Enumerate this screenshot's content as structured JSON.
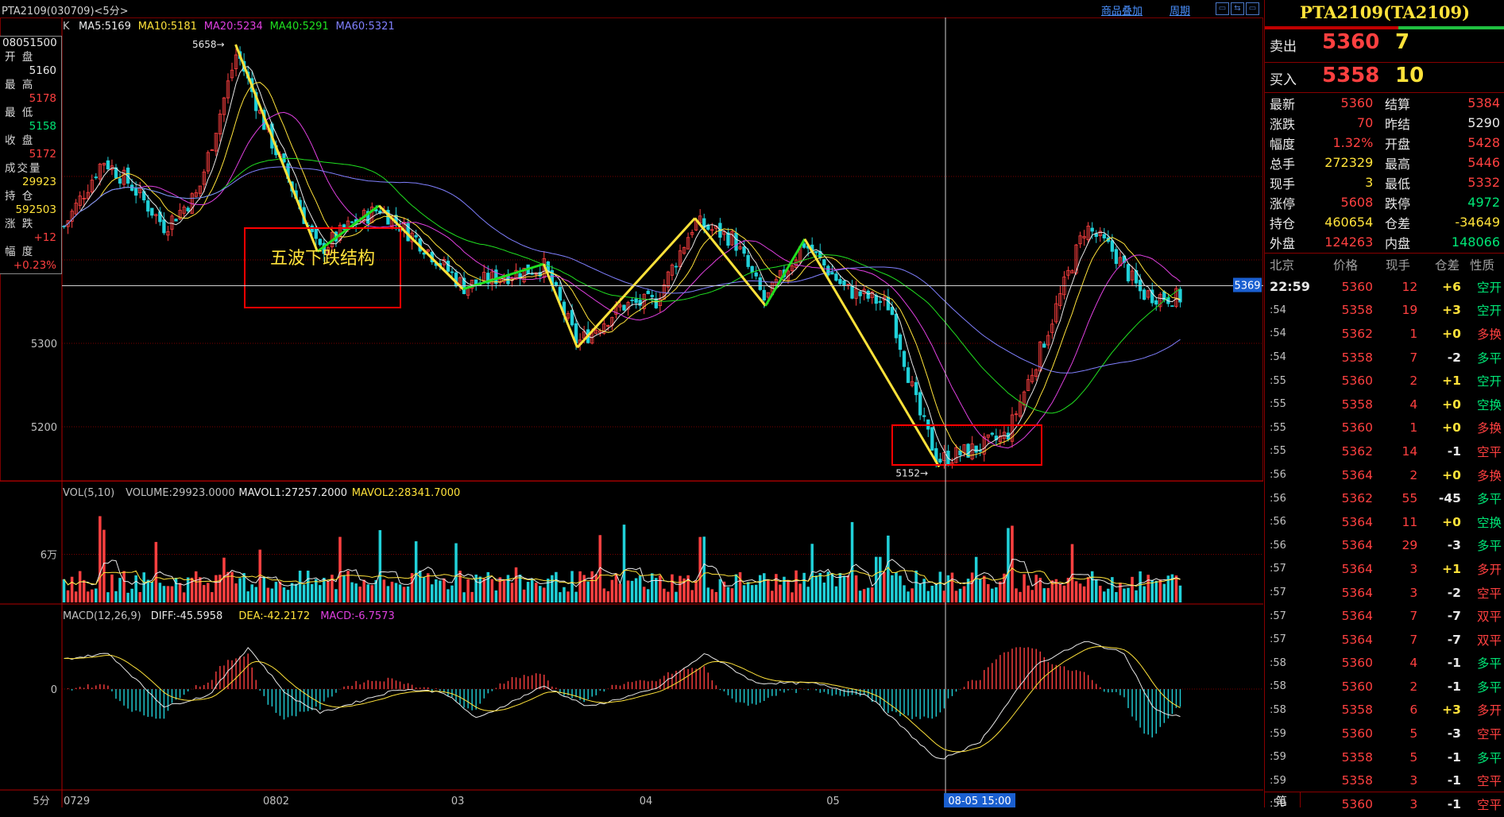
{
  "window": {
    "title": "PTA2109(030709)<5分>",
    "links": [
      "商品叠加",
      "周期"
    ],
    "buttons": [
      "▭",
      "⇆",
      "▭"
    ]
  },
  "left_info": {
    "time": "08051500",
    "rows": [
      {
        "label": "开  盘",
        "value": "5160",
        "color": "#e8e8e8"
      },
      {
        "label": "最  高",
        "value": "5178",
        "color": "#ff4040"
      },
      {
        "label": "最  低",
        "value": "5158",
        "color": "#00e676"
      },
      {
        "label": "收  盘",
        "value": "5172",
        "color": "#ff4040"
      },
      {
        "label": "成交量",
        "value": "29923",
        "color": "#ffe23a"
      },
      {
        "label": "持  仓",
        "value": "592503",
        "color": "#ffe23a"
      },
      {
        "label": "涨  跌",
        "value": "+12",
        "color": "#ff4040"
      },
      {
        "label": "幅  度",
        "value": "+0.23%",
        "color": "#ff4040"
      }
    ]
  },
  "chart_data": {
    "type": "candlestick",
    "period": "5分",
    "legend": {
      "prefix": "K",
      "items": [
        {
          "text": "MA5:5169",
          "color": "#e8e8e8"
        },
        {
          "text": "MA10:5181",
          "color": "#ffe23a"
        },
        {
          "text": "MA20:5234",
          "color": "#e040e0"
        },
        {
          "text": "MA40:5291",
          "color": "#20e020"
        },
        {
          "text": "MA60:5321",
          "color": "#8080ff"
        }
      ]
    },
    "y_ticks": [
      5200,
      5300
    ],
    "ylim": [
      5140,
      5670
    ],
    "x_ticks": [
      {
        "label": "0729",
        "pos": 0.0
      },
      {
        "label": "0802",
        "pos": 0.178
      },
      {
        "label": "03",
        "pos": 0.346
      },
      {
        "label": "04",
        "pos": 0.514
      },
      {
        "label": "05",
        "pos": 0.681
      }
    ],
    "x_cursor_label": "08-05 15:00",
    "y_cursor_label": "5369",
    "cursor_value": 5369,
    "high_annot": {
      "label": "5658",
      "value": 5658,
      "pos": 0.155
    },
    "low_annot": {
      "label": "5152",
      "value": 5152,
      "pos": 0.783
    },
    "annotation_text": "五波下跌结构",
    "wave_points": [
      {
        "pos": 0.155,
        "value": 5658
      },
      {
        "pos": 0.228,
        "value": 5410
      },
      {
        "pos": 0.283,
        "value": 5465
      },
      {
        "pos": 0.358,
        "value": 5365
      },
      {
        "pos": 0.43,
        "value": 5395
      },
      {
        "pos": 0.46,
        "value": 5295
      },
      {
        "pos": 0.565,
        "value": 5450
      },
      {
        "pos": 0.628,
        "value": 5345
      },
      {
        "pos": 0.663,
        "value": 5425
      },
      {
        "pos": 0.783,
        "value": 5152
      }
    ],
    "close_anchors": [
      {
        "pos": 0.0,
        "value": 5440
      },
      {
        "pos": 0.035,
        "value": 5520
      },
      {
        "pos": 0.06,
        "value": 5490
      },
      {
        "pos": 0.09,
        "value": 5440
      },
      {
        "pos": 0.12,
        "value": 5480
      },
      {
        "pos": 0.155,
        "value": 5650
      },
      {
        "pos": 0.18,
        "value": 5560
      },
      {
        "pos": 0.2,
        "value": 5500
      },
      {
        "pos": 0.228,
        "value": 5410
      },
      {
        "pos": 0.255,
        "value": 5440
      },
      {
        "pos": 0.283,
        "value": 5462
      },
      {
        "pos": 0.32,
        "value": 5420
      },
      {
        "pos": 0.358,
        "value": 5368
      },
      {
        "pos": 0.39,
        "value": 5380
      },
      {
        "pos": 0.43,
        "value": 5392
      },
      {
        "pos": 0.46,
        "value": 5300
      },
      {
        "pos": 0.5,
        "value": 5345
      },
      {
        "pos": 0.53,
        "value": 5350
      },
      {
        "pos": 0.565,
        "value": 5445
      },
      {
        "pos": 0.6,
        "value": 5425
      },
      {
        "pos": 0.628,
        "value": 5350
      },
      {
        "pos": 0.663,
        "value": 5420
      },
      {
        "pos": 0.7,
        "value": 5365
      },
      {
        "pos": 0.74,
        "value": 5345
      },
      {
        "pos": 0.765,
        "value": 5220
      },
      {
        "pos": 0.783,
        "value": 5160
      },
      {
        "pos": 0.82,
        "value": 5175
      },
      {
        "pos": 0.845,
        "value": 5190
      },
      {
        "pos": 0.88,
        "value": 5310
      },
      {
        "pos": 0.915,
        "value": 5440
      },
      {
        "pos": 0.94,
        "value": 5410
      },
      {
        "pos": 0.965,
        "value": 5360
      },
      {
        "pos": 0.99,
        "value": 5355
      }
    ],
    "volume": {
      "legend": [
        {
          "text": "VOL(5,10)",
          "color": "#c0c0c0"
        },
        {
          "text": "VOLUME:29923.0000",
          "color": "#c0c0c0"
        },
        {
          "text": "MAVOL1:27257.2000",
          "color": "#e8e8e8"
        },
        {
          "text": "MAVOL2:28341.7000",
          "color": "#ffe23a"
        }
      ],
      "y_tick_label": "6万",
      "y_tick_value": 60000,
      "ymax": 130000
    },
    "macd": {
      "legend": [
        {
          "text": "MACD(12,26,9)",
          "color": "#c0c0c0"
        },
        {
          "text": "DIFF:-45.5958",
          "color": "#e8e8e8"
        },
        {
          "text": "DEA:-42.2172",
          "color": "#ffe23a"
        },
        {
          "text": "MACD:-6.7573",
          "color": "#e040e0"
        }
      ],
      "zero_label": "0",
      "diff_anchors": [
        {
          "pos": 0.0,
          "value": 50
        },
        {
          "pos": 0.04,
          "value": 60
        },
        {
          "pos": 0.09,
          "value": -30
        },
        {
          "pos": 0.13,
          "value": -10
        },
        {
          "pos": 0.165,
          "value": 70
        },
        {
          "pos": 0.2,
          "value": -10
        },
        {
          "pos": 0.23,
          "value": -40
        },
        {
          "pos": 0.3,
          "value": 0
        },
        {
          "pos": 0.34,
          "value": -5
        },
        {
          "pos": 0.37,
          "value": -50
        },
        {
          "pos": 0.43,
          "value": 5
        },
        {
          "pos": 0.47,
          "value": -30
        },
        {
          "pos": 0.53,
          "value": 0
        },
        {
          "pos": 0.575,
          "value": 60
        },
        {
          "pos": 0.62,
          "value": 10
        },
        {
          "pos": 0.67,
          "value": 10
        },
        {
          "pos": 0.72,
          "value": -10
        },
        {
          "pos": 0.783,
          "value": -120
        },
        {
          "pos": 0.82,
          "value": -90
        },
        {
          "pos": 0.87,
          "value": 40
        },
        {
          "pos": 0.915,
          "value": 80
        },
        {
          "pos": 0.95,
          "value": 60
        },
        {
          "pos": 0.975,
          "value": -30
        },
        {
          "pos": 0.99,
          "value": -45
        }
      ]
    }
  },
  "right_panel": {
    "title": "PTA2109(TA2109)",
    "sell": {
      "label": "卖出",
      "price": "5360",
      "qty": "7"
    },
    "buy": {
      "label": "买入",
      "price": "5358",
      "qty": "10"
    },
    "quote_rows": [
      {
        "l1": "最新",
        "v1": "5360",
        "c1": "#ff4040",
        "l2": "结算",
        "v2": "5384",
        "c2": "#ff4040"
      },
      {
        "l1": "涨跌",
        "v1": "70",
        "c1": "#ff4040",
        "l2": "昨结",
        "v2": "5290",
        "c2": "#e8e8e8"
      },
      {
        "l1": "幅度",
        "v1": "1.32%",
        "c1": "#ff4040",
        "l2": "开盘",
        "v2": "5428",
        "c2": "#ff4040"
      },
      {
        "l1": "总手",
        "v1": "272329",
        "c1": "#ffe23a",
        "l2": "最高",
        "v2": "5446",
        "c2": "#ff4040"
      },
      {
        "l1": "现手",
        "v1": "3",
        "c1": "#ffe23a",
        "l2": "最低",
        "v2": "5332",
        "c2": "#ff4040"
      },
      {
        "l1": "涨停",
        "v1": "5608",
        "c1": "#ff4040",
        "l2": "跌停",
        "v2": "4972",
        "c2": "#00e676"
      },
      {
        "l1": "持仓",
        "v1": "460654",
        "c1": "#ffe23a",
        "l2": "仓差",
        "v2": "-34649",
        "c2": "#ffe23a"
      },
      {
        "l1": "外盘",
        "v1": "124263",
        "c1": "#ff4040",
        "l2": "内盘",
        "v2": "148066",
        "c2": "#00e676"
      }
    ],
    "tick_header": [
      "北京",
      "价格",
      "现手",
      "仓差",
      "性质"
    ],
    "ticks": [
      {
        "time": "22:59",
        "price": "5360",
        "qty": "12",
        "diff": "+6",
        "nature": "空开",
        "nc": "#00e676"
      },
      {
        "time": ":54",
        "price": "5358",
        "qty": "19",
        "diff": "+3",
        "nature": "空开",
        "nc": "#00e676"
      },
      {
        "time": ":54",
        "price": "5362",
        "qty": "1",
        "diff": "+0",
        "nature": "多换",
        "nc": "#ff4040"
      },
      {
        "time": ":54",
        "price": "5358",
        "qty": "7",
        "diff": "-2",
        "nature": "多平",
        "nc": "#00e676"
      },
      {
        "time": ":55",
        "price": "5360",
        "qty": "2",
        "diff": "+1",
        "nature": "空开",
        "nc": "#00e676"
      },
      {
        "time": ":55",
        "price": "5358",
        "qty": "4",
        "diff": "+0",
        "nature": "空换",
        "nc": "#00e676"
      },
      {
        "time": ":55",
        "price": "5360",
        "qty": "1",
        "diff": "+0",
        "nature": "多换",
        "nc": "#ff4040"
      },
      {
        "time": ":55",
        "price": "5362",
        "qty": "14",
        "diff": "-1",
        "nature": "空平",
        "nc": "#ff4040"
      },
      {
        "time": ":56",
        "price": "5364",
        "qty": "2",
        "diff": "+0",
        "nature": "多换",
        "nc": "#ff4040"
      },
      {
        "time": ":56",
        "price": "5362",
        "qty": "55",
        "diff": "-45",
        "nature": "多平",
        "nc": "#00e676"
      },
      {
        "time": ":56",
        "price": "5364",
        "qty": "11",
        "diff": "+0",
        "nature": "空换",
        "nc": "#00e676"
      },
      {
        "time": ":56",
        "price": "5364",
        "qty": "29",
        "diff": "-3",
        "nature": "多平",
        "nc": "#00e676"
      },
      {
        "time": ":57",
        "price": "5364",
        "qty": "3",
        "diff": "+1",
        "nature": "多开",
        "nc": "#ff4040"
      },
      {
        "time": ":57",
        "price": "5364",
        "qty": "3",
        "diff": "-2",
        "nature": "空平",
        "nc": "#ff4040"
      },
      {
        "time": ":57",
        "price": "5364",
        "qty": "7",
        "diff": "-7",
        "nature": "双平",
        "nc": "#ff4040"
      },
      {
        "time": ":57",
        "price": "5364",
        "qty": "7",
        "diff": "-7",
        "nature": "双平",
        "nc": "#ff4040"
      },
      {
        "time": ":58",
        "price": "5360",
        "qty": "4",
        "diff": "-1",
        "nature": "多平",
        "nc": "#00e676"
      },
      {
        "time": ":58",
        "price": "5360",
        "qty": "2",
        "diff": "-1",
        "nature": "多平",
        "nc": "#00e676"
      },
      {
        "time": ":58",
        "price": "5358",
        "qty": "6",
        "diff": "+3",
        "nature": "多开",
        "nc": "#ff4040"
      },
      {
        "time": ":59",
        "price": "5360",
        "qty": "5",
        "diff": "-3",
        "nature": "空平",
        "nc": "#ff4040"
      },
      {
        "time": ":59",
        "price": "5358",
        "qty": "5",
        "diff": "-1",
        "nature": "多平",
        "nc": "#00e676"
      },
      {
        "time": ":59",
        "price": "5358",
        "qty": "3",
        "diff": "-1",
        "nature": "空平",
        "nc": "#ff4040"
      },
      {
        "time": ":59",
        "price": "5360",
        "qty": "3",
        "diff": "-1",
        "nature": "空平",
        "nc": "#ff4040"
      }
    ],
    "bottom_tab": "笔"
  },
  "bottom_left": "5分",
  "colors": {
    "up": "#ff4040",
    "down": "#20d0d8",
    "grid": "#7a0000",
    "wave": "#ffe23a",
    "wave_green": "#20e020",
    "box": "#ff0000"
  }
}
